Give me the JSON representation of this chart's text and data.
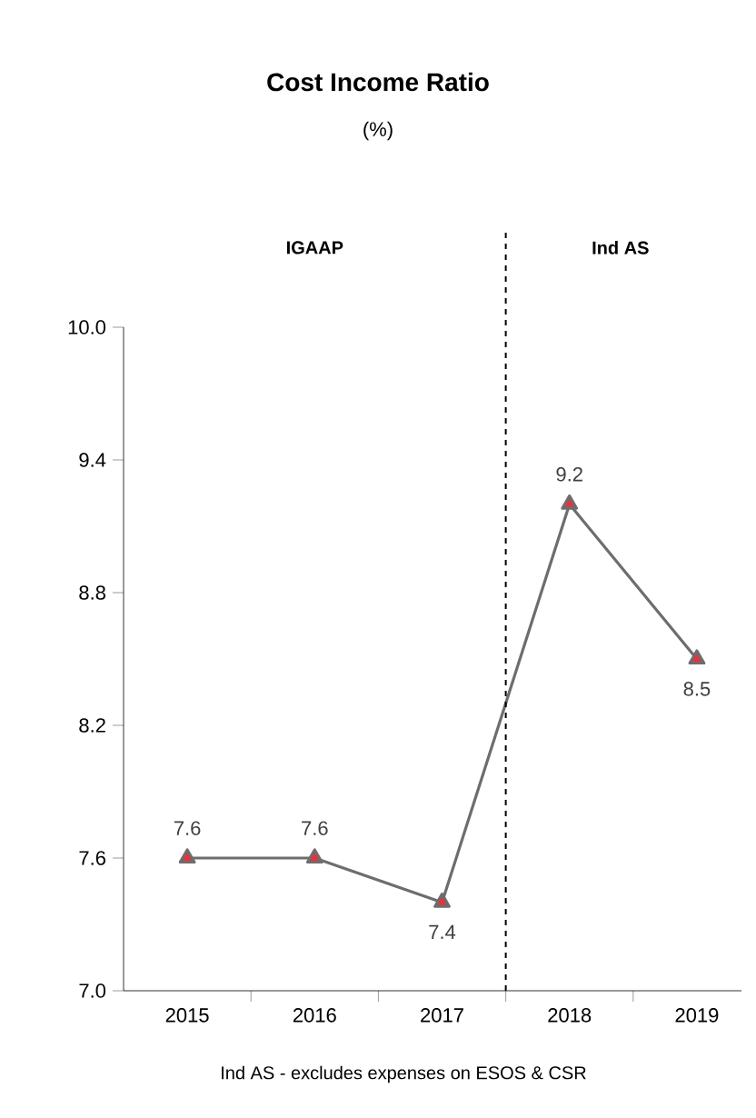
{
  "chart_data": {
    "type": "line",
    "title": "Cost Income Ratio",
    "subtitle": "(%)",
    "categories": [
      "2015",
      "2016",
      "2017",
      "2018",
      "2019"
    ],
    "series": [
      {
        "color": "#6d6d6d",
        "values": [
          7.6,
          7.6,
          7.4,
          9.2,
          8.5
        ]
      }
    ],
    "marker": "triangle",
    "data_labels": true,
    "ylim": [
      7.0,
      10.0
    ],
    "yticks": [
      {
        "value": 7.0,
        "label": "7.0"
      },
      {
        "value": 7.6,
        "label": "7.6"
      },
      {
        "value": 8.2,
        "label": "8.2"
      },
      {
        "value": 8.8,
        "label": "8.8"
      },
      {
        "value": 9.4,
        "label": "9.4"
      },
      {
        "value": 10.0,
        "label": "10.0"
      }
    ],
    "annotations": [
      "IGAAP",
      "Ind AS",
      "Ind AS -  excludes expenses on ESOS & CSR"
    ]
  }
}
